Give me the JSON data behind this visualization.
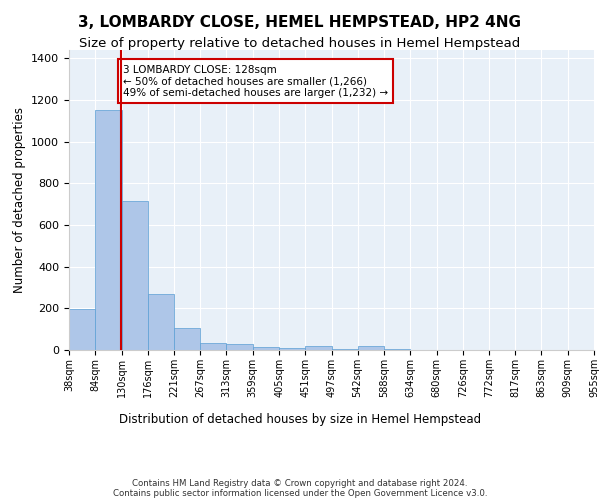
{
  "title": "3, LOMBARDY CLOSE, HEMEL HEMPSTEAD, HP2 4NG",
  "subtitle": "Size of property relative to detached houses in Hemel Hempstead",
  "xlabel": "Distribution of detached houses by size in Hemel Hempstead",
  "ylabel": "Number of detached properties",
  "bin_edges": [
    38,
    84,
    130,
    176,
    221,
    267,
    313,
    359,
    405,
    451,
    497,
    542,
    588,
    634,
    680,
    726,
    772,
    817,
    863,
    909,
    955
  ],
  "bar_values": [
    195,
    1150,
    715,
    270,
    105,
    35,
    28,
    15,
    12,
    18,
    5,
    18,
    3,
    2,
    1,
    1,
    0,
    0,
    0,
    0
  ],
  "bar_color": "#aec6e8",
  "bar_edge_color": "#5a9fd4",
  "property_size": 128,
  "vline_color": "#cc0000",
  "annotation_text": "3 LOMBARDY CLOSE: 128sqm\n← 50% of detached houses are smaller (1,266)\n49% of semi-detached houses are larger (1,232) →",
  "annotation_box_color": "#ffffff",
  "annotation_box_edge_color": "#cc0000",
  "ylim": [
    0,
    1440
  ],
  "yticks": [
    0,
    200,
    400,
    600,
    800,
    1000,
    1200,
    1400
  ],
  "plot_bg_color": "#e8f0f8",
  "footer_line1": "Contains HM Land Registry data © Crown copyright and database right 2024.",
  "footer_line2": "Contains public sector information licensed under the Open Government Licence v3.0.",
  "title_fontsize": 11,
  "subtitle_fontsize": 9.5,
  "tick_labels": [
    "38sqm",
    "84sqm",
    "130sqm",
    "176sqm",
    "221sqm",
    "267sqm",
    "313sqm",
    "359sqm",
    "405sqm",
    "451sqm",
    "497sqm",
    "542sqm",
    "588sqm",
    "634sqm",
    "680sqm",
    "726sqm",
    "772sqm",
    "817sqm",
    "863sqm",
    "909sqm",
    "955sqm"
  ]
}
